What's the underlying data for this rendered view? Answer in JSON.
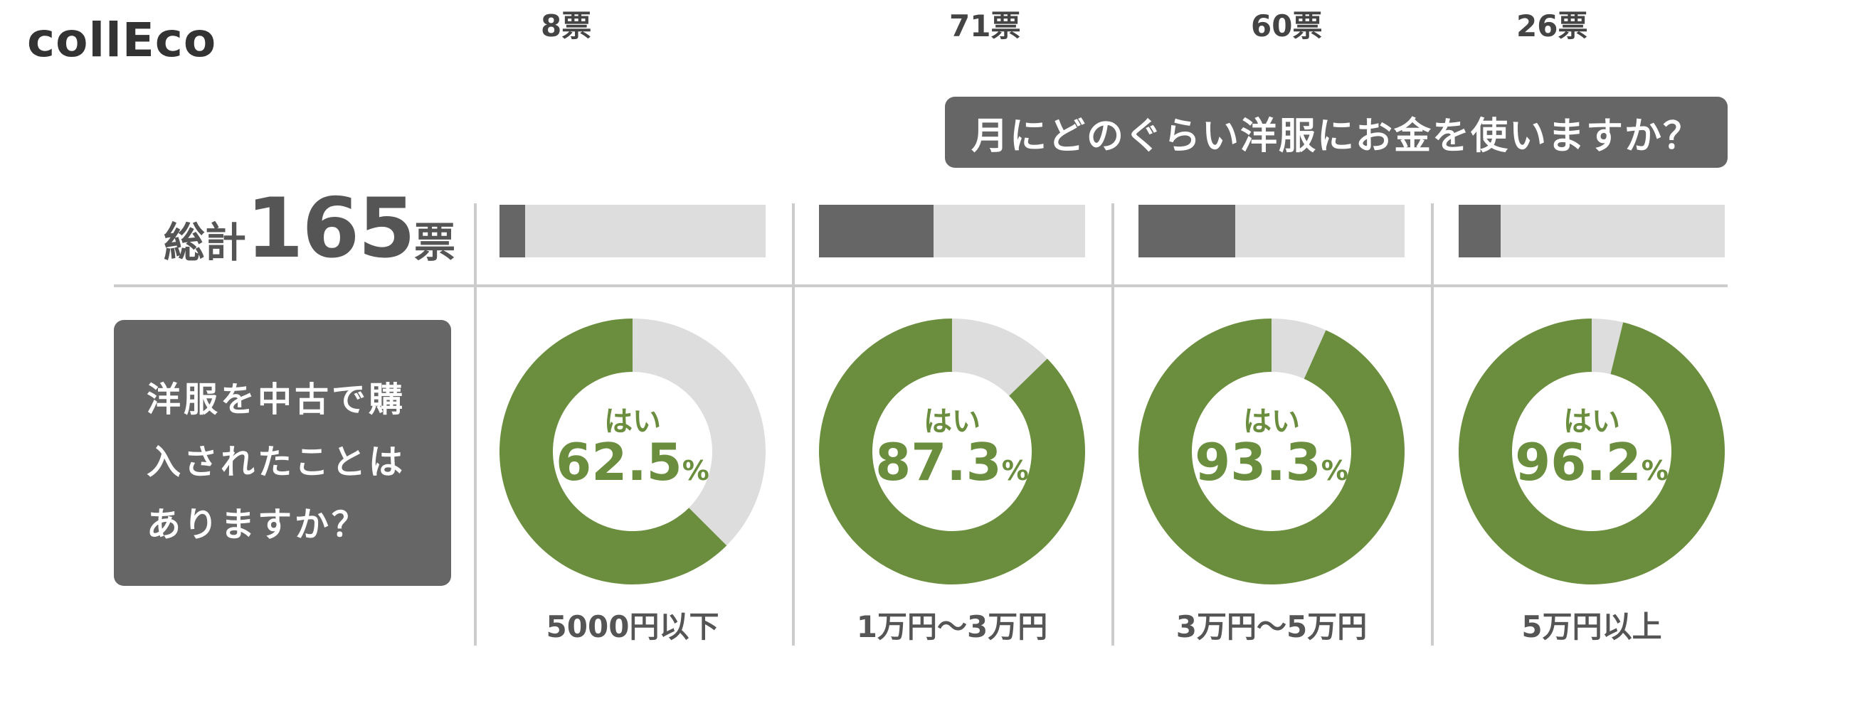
{
  "logo": "collEco",
  "question": "月にどのぐらい洋服にお金を使いますか？",
  "total": {
    "label": "総計",
    "value": "165",
    "unit": "票"
  },
  "sub_question_lines": [
    "洋服を中古で購",
    "入されたことは",
    "ありますか？"
  ],
  "yes_label": "はい",
  "percent_sign": "%",
  "colors": {
    "yes": "#6b8e3e",
    "no": "#dddddd",
    "dark": "#666666"
  },
  "chart_data": {
    "type": "pie",
    "categories": [
      "5000円以下",
      "1万円〜3万円",
      "3万円〜5万円",
      "5万円以上"
    ],
    "votes": [
      8,
      71,
      60,
      26
    ],
    "votes_labels": [
      "8票",
      "71票",
      "60票",
      "26票"
    ],
    "yes_percent": [
      62.5,
      87.3,
      93.3,
      96.2
    ],
    "yes_percent_labels": [
      "62.5",
      "87.3",
      "93.3",
      "96.2"
    ],
    "votes_scale_max": 165
  }
}
